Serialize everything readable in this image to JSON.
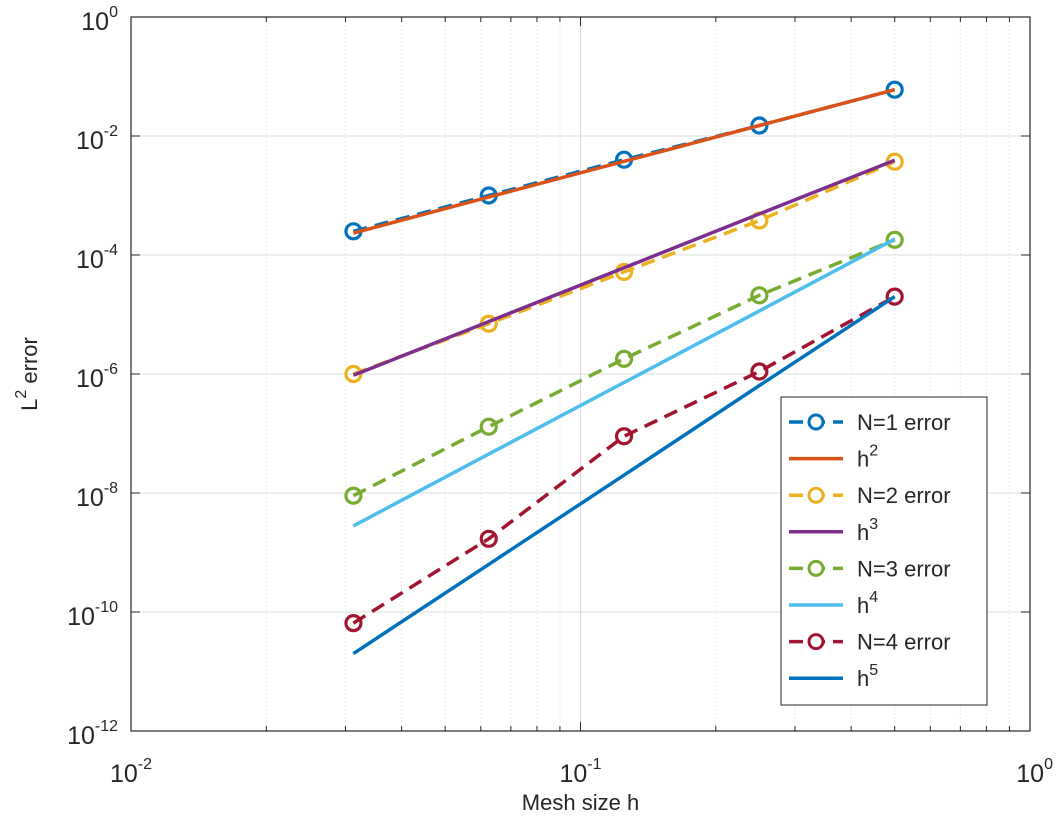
{
  "chart_data": {
    "type": "line",
    "title": "",
    "xlabel": "Mesh size h",
    "ylabel": {
      "base": "L",
      "sup": "2",
      "rest": " error"
    },
    "xscale": "log",
    "yscale": "log",
    "xlim": [
      0.01,
      1
    ],
    "ylim": [
      1e-12,
      1
    ],
    "grid": true,
    "legend_position": "bottom-right",
    "x_ticks": [
      {
        "value": 0.01,
        "base": "10",
        "exp": "-2"
      },
      {
        "value": 0.1,
        "base": "10",
        "exp": "-1"
      },
      {
        "value": 1,
        "base": "10",
        "exp": "0"
      }
    ],
    "y_ticks": [
      {
        "value": 1e-12,
        "base": "10",
        "exp": "-12"
      },
      {
        "value": 1e-10,
        "base": "10",
        "exp": "-10"
      },
      {
        "value": 1e-08,
        "base": "10",
        "exp": "-8"
      },
      {
        "value": 1e-06,
        "base": "10",
        "exp": "-6"
      },
      {
        "value": 0.0001,
        "base": "10",
        "exp": "-4"
      },
      {
        "value": 0.01,
        "base": "10",
        "exp": "-2"
      },
      {
        "value": 1,
        "base": "10",
        "exp": "0"
      }
    ],
    "x": [
      0.03125,
      0.0625,
      0.125,
      0.25,
      0.5
    ],
    "series": [
      {
        "name": "N=1 error",
        "legend_base": "N=1 error",
        "legend_sup": "",
        "style": "dashed",
        "marker": "circle",
        "color": "#0072BD",
        "values": [
          0.00025,
          0.001,
          0.004,
          0.015,
          0.06
        ]
      },
      {
        "name": "h^2",
        "legend_base": "h",
        "legend_sup": "2",
        "style": "solid",
        "marker": "none",
        "color": "#D95319",
        "values": [
          0.000234,
          0.00094,
          0.00375,
          0.015,
          0.06
        ]
      },
      {
        "name": "N=2 error",
        "legend_base": "N=2 error",
        "legend_sup": "",
        "style": "dashed",
        "marker": "circle",
        "color": "#EDB120",
        "values": [
          1e-06,
          7e-06,
          5.2e-05,
          0.00038,
          0.0037
        ]
      },
      {
        "name": "h^3",
        "legend_base": "h",
        "legend_sup": "3",
        "style": "solid",
        "marker": "none",
        "color": "#7E2F8E",
        "values": [
          9.5e-07,
          7.6e-06,
          6.1e-05,
          0.00049,
          0.0039
        ]
      },
      {
        "name": "N=3 error",
        "legend_base": "N=3 error",
        "legend_sup": "",
        "style": "dashed",
        "marker": "circle",
        "color": "#77AC30",
        "values": [
          9e-09,
          1.3e-07,
          1.8e-06,
          2.1e-05,
          0.00018
        ]
      },
      {
        "name": "h^4",
        "legend_base": "h",
        "legend_sup": "4",
        "style": "solid",
        "marker": "none",
        "color": "#4DBEEE",
        "values": [
          2.8e-09,
          4.5e-08,
          7.2e-07,
          1.15e-05,
          0.000185
        ]
      },
      {
        "name": "N=4 error",
        "legend_base": "N=4 error",
        "legend_sup": "",
        "style": "dashed",
        "marker": "circle",
        "color": "#A2142F",
        "values": [
          6.5e-11,
          1.7e-09,
          9e-08,
          1.1e-06,
          2e-05
        ]
      },
      {
        "name": "h^5",
        "legend_base": "h",
        "legend_sup": "5",
        "style": "solid",
        "marker": "none",
        "color": "#0072BD",
        "values": [
          2e-11,
          6.3e-10,
          2e-08,
          6.4e-07,
          2e-05
        ]
      }
    ]
  }
}
